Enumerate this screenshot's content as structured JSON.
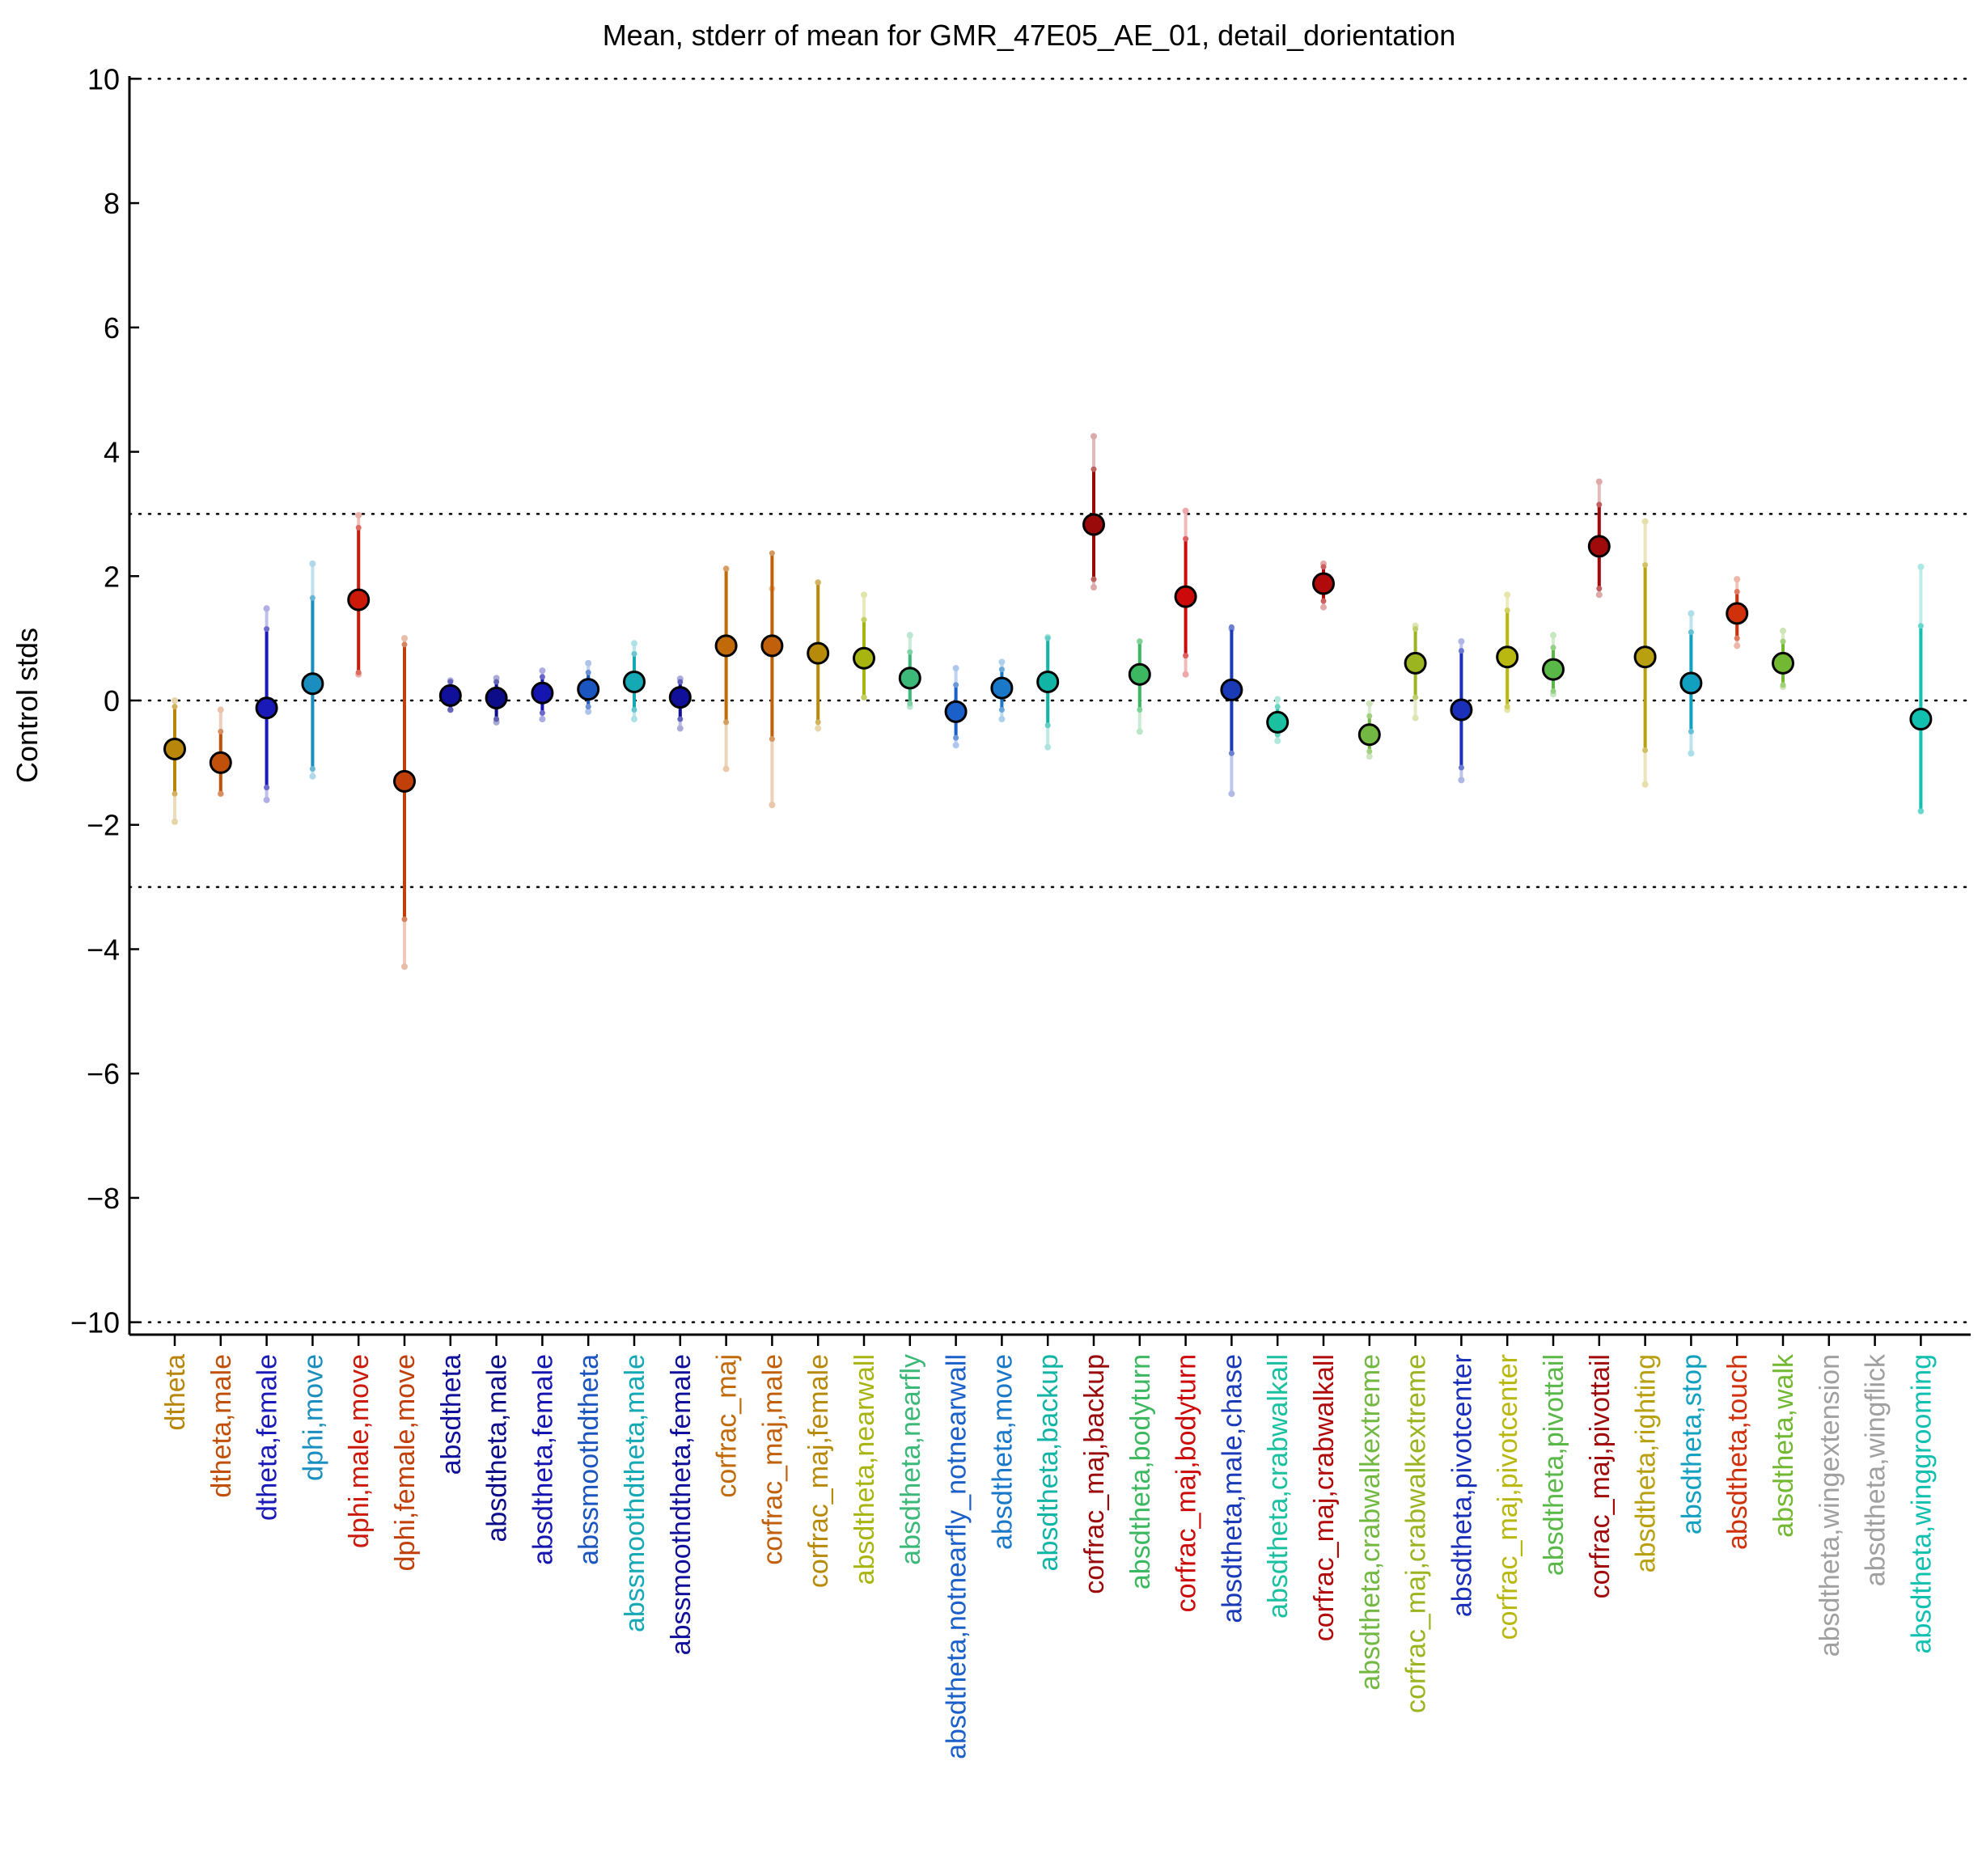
{
  "chart_data": {
    "type": "scatter",
    "title": "Mean, stderr of mean for GMR_47E05_AE_01, detail_dorientation",
    "xlabel": "",
    "ylabel": "Control stds",
    "ylim": [
      -10.2,
      10.2
    ],
    "yticks": [
      -10,
      -8,
      -6,
      -4,
      -2,
      0,
      2,
      4,
      6,
      8,
      10
    ],
    "ytick_labels": [
      "−10",
      "−8",
      "−6",
      "−4",
      "−2",
      "0",
      "2",
      "4",
      "6",
      "8",
      "10"
    ],
    "reference_lines": [
      -10,
      -3,
      0,
      3,
      10
    ],
    "grid": false,
    "error_bars": "stderr of mean (inner) and std (outer, light)",
    "points": [
      {
        "label": "dtheta",
        "mean": -0.78,
        "se_lo": -1.5,
        "se_hi": -0.1,
        "sd_lo": -1.95,
        "sd_hi": 0.0,
        "color": "#b8860b"
      },
      {
        "label": "dtheta,male",
        "mean": -1.0,
        "se_lo": -1.5,
        "se_hi": -0.5,
        "sd_lo": -1.5,
        "sd_hi": -0.15,
        "color": "#c1510a"
      },
      {
        "label": "dtheta,female",
        "mean": -0.12,
        "se_lo": -1.4,
        "se_hi": 1.15,
        "sd_lo": -1.6,
        "sd_hi": 1.48,
        "color": "#1a1ab8"
      },
      {
        "label": "dphi,move",
        "mean": 0.27,
        "se_lo": -1.1,
        "se_hi": 1.65,
        "sd_lo": -1.22,
        "sd_hi": 2.2,
        "color": "#1a8fbf"
      },
      {
        "label": "dphi,male,move",
        "mean": 1.62,
        "se_lo": 0.45,
        "se_hi": 2.78,
        "sd_lo": 0.42,
        "sd_hi": 2.98,
        "color": "#cc1a0a"
      },
      {
        "label": "dphi,female,move",
        "mean": -1.3,
        "se_lo": -3.52,
        "se_hi": 0.9,
        "sd_lo": -4.28,
        "sd_hi": 1.0,
        "color": "#c1400a"
      },
      {
        "label": "absdtheta",
        "mean": 0.08,
        "se_lo": -0.15,
        "se_hi": 0.3,
        "sd_lo": -0.15,
        "sd_hi": 0.32,
        "color": "#10109a"
      },
      {
        "label": "absdtheta,male",
        "mean": 0.04,
        "se_lo": -0.3,
        "se_hi": 0.3,
        "sd_lo": -0.35,
        "sd_hi": 0.36,
        "color": "#0d0d8a"
      },
      {
        "label": "absdtheta,female",
        "mean": 0.12,
        "se_lo": -0.2,
        "se_hi": 0.38,
        "sd_lo": -0.3,
        "sd_hi": 0.48,
        "color": "#1515b0"
      },
      {
        "label": "abssmoothdtheta",
        "mean": 0.18,
        "se_lo": -0.1,
        "se_hi": 0.45,
        "sd_lo": -0.18,
        "sd_hi": 0.6,
        "color": "#1a55c0"
      },
      {
        "label": "abssmoothdtheta,male",
        "mean": 0.3,
        "se_lo": -0.15,
        "se_hi": 0.75,
        "sd_lo": -0.3,
        "sd_hi": 0.92,
        "color": "#15a8b5"
      },
      {
        "label": "abssmoothdtheta,female",
        "mean": 0.05,
        "se_lo": -0.3,
        "se_hi": 0.3,
        "sd_lo": -0.45,
        "sd_hi": 0.35,
        "color": "#10109a"
      },
      {
        "label": "corfrac_maj",
        "mean": 0.88,
        "se_lo": -0.35,
        "se_hi": 2.12,
        "sd_lo": -1.1,
        "sd_hi": 2.12,
        "color": "#c06a0a"
      },
      {
        "label": "corfrac_maj,male",
        "mean": 0.88,
        "se_lo": -0.62,
        "se_hi": 2.37,
        "sd_lo": -1.68,
        "sd_hi": 1.8,
        "color": "#c0600a"
      },
      {
        "label": "corfrac_maj,female",
        "mean": 0.76,
        "se_lo": -0.35,
        "se_hi": 1.9,
        "sd_lo": -0.45,
        "sd_hi": 1.9,
        "color": "#b88a0a"
      },
      {
        "label": "absdtheta,nearwall",
        "mean": 0.68,
        "se_lo": 0.05,
        "se_hi": 1.3,
        "sd_lo": 0.05,
        "sd_hi": 1.7,
        "color": "#a8b510"
      },
      {
        "label": "absdtheta,nearfly",
        "mean": 0.36,
        "se_lo": -0.05,
        "se_hi": 0.78,
        "sd_lo": -0.1,
        "sd_hi": 1.05,
        "color": "#3cb878"
      },
      {
        "label": "absdtheta,notnearfly_notnearwall",
        "mean": -0.18,
        "se_lo": -0.6,
        "se_hi": 0.25,
        "sd_lo": -0.72,
        "sd_hi": 0.52,
        "color": "#1a60c8"
      },
      {
        "label": "absdtheta,move",
        "mean": 0.2,
        "se_lo": -0.15,
        "se_hi": 0.5,
        "sd_lo": -0.3,
        "sd_hi": 0.62,
        "color": "#1a78c8"
      },
      {
        "label": "absdtheta,backup",
        "mean": 0.3,
        "se_lo": -0.4,
        "se_hi": 1.0,
        "sd_lo": -0.75,
        "sd_hi": 1.02,
        "color": "#12b5a5"
      },
      {
        "label": "corfrac_maj,backup",
        "mean": 2.83,
        "se_lo": 1.95,
        "se_hi": 3.72,
        "sd_lo": 1.82,
        "sd_hi": 4.25,
        "color": "#9a0a0a"
      },
      {
        "label": "absdtheta,bodyturn",
        "mean": 0.42,
        "se_lo": -0.15,
        "se_hi": 0.95,
        "sd_lo": -0.5,
        "sd_hi": 0.95,
        "color": "#3cb860"
      },
      {
        "label": "corfrac_maj,bodyturn",
        "mean": 1.67,
        "se_lo": 0.72,
        "se_hi": 2.6,
        "sd_lo": 0.42,
        "sd_hi": 3.05,
        "color": "#cc0a0a"
      },
      {
        "label": "absdtheta,male,chase",
        "mean": 0.17,
        "se_lo": -0.85,
        "se_hi": 1.18,
        "sd_lo": -1.5,
        "sd_hi": 1.15,
        "color": "#1a3ab8"
      },
      {
        "label": "absdtheta,crabwalkall",
        "mean": -0.35,
        "se_lo": -0.55,
        "se_hi": -0.1,
        "sd_lo": -0.65,
        "sd_hi": 0.02,
        "color": "#1ac0a0"
      },
      {
        "label": "corfrac_maj,crabwalkall",
        "mean": 1.88,
        "se_lo": 1.6,
        "se_hi": 2.15,
        "sd_lo": 1.5,
        "sd_hi": 2.2,
        "color": "#b00a0a"
      },
      {
        "label": "absdtheta,crabwalkextreme",
        "mean": -0.55,
        "se_lo": -0.82,
        "se_hi": -0.25,
        "sd_lo": -0.9,
        "sd_hi": -0.05,
        "color": "#72b842"
      },
      {
        "label": "corfrac_maj,crabwalkextreme",
        "mean": 0.6,
        "se_lo": 0.05,
        "se_hi": 1.15,
        "sd_lo": -0.28,
        "sd_hi": 1.2,
        "color": "#9ab520"
      },
      {
        "label": "absdtheta,pivotcenter",
        "mean": -0.15,
        "se_lo": -1.08,
        "se_hi": 0.8,
        "sd_lo": -1.28,
        "sd_hi": 0.95,
        "color": "#1a30b8"
      },
      {
        "label": "corfrac_maj,pivotcenter",
        "mean": 0.7,
        "se_lo": -0.1,
        "se_hi": 1.45,
        "sd_lo": -0.15,
        "sd_hi": 1.7,
        "color": "#b8b810"
      },
      {
        "label": "absdtheta,pivottail",
        "mean": 0.5,
        "se_lo": 0.15,
        "se_hi": 0.85,
        "sd_lo": 0.1,
        "sd_hi": 1.05,
        "color": "#5ab848"
      },
      {
        "label": "corfrac_maj,pivottail",
        "mean": 2.48,
        "se_lo": 1.8,
        "se_hi": 3.15,
        "sd_lo": 1.7,
        "sd_hi": 3.52,
        "color": "#a00a0a"
      },
      {
        "label": "absdtheta,righting",
        "mean": 0.7,
        "se_lo": -0.8,
        "se_hi": 2.18,
        "sd_lo": -1.35,
        "sd_hi": 2.88,
        "color": "#b8a010"
      },
      {
        "label": "absdtheta,stop",
        "mean": 0.28,
        "se_lo": -0.5,
        "se_hi": 1.1,
        "sd_lo": -0.85,
        "sd_hi": 1.4,
        "color": "#12a0c0"
      },
      {
        "label": "absdtheta,touch",
        "mean": 1.4,
        "se_lo": 1.0,
        "se_hi": 1.75,
        "sd_lo": 0.88,
        "sd_hi": 1.95,
        "color": "#d0300a"
      },
      {
        "label": "absdtheta,walk",
        "mean": 0.6,
        "se_lo": 0.25,
        "se_hi": 0.95,
        "sd_lo": 0.22,
        "sd_hi": 1.12,
        "color": "#72b832"
      },
      {
        "label": "absdtheta,wingextension",
        "mean": null,
        "se_lo": null,
        "se_hi": null,
        "sd_lo": null,
        "sd_hi": null,
        "color": "#a0a0a0"
      },
      {
        "label": "absdtheta,wingflick",
        "mean": null,
        "se_lo": null,
        "se_hi": null,
        "sd_lo": null,
        "sd_hi": null,
        "color": "#a0a0a0"
      },
      {
        "label": "absdtheta,winggrooming",
        "mean": -0.3,
        "se_lo": -1.78,
        "se_hi": 1.2,
        "sd_lo": -1.78,
        "sd_hi": 2.15,
        "color": "#12c0b0"
      }
    ]
  }
}
